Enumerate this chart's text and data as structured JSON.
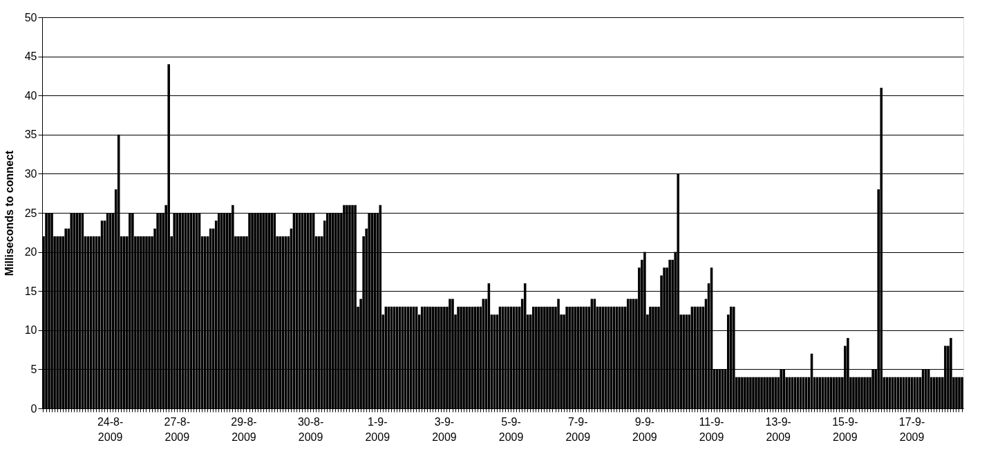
{
  "chart_data": {
    "type": "bar",
    "ylabel": "Milliseconds to connect",
    "categories": [
      null,
      null,
      null,
      null,
      null,
      null,
      null,
      null,
      null,
      null,
      null,
      null,
      null,
      null,
      null,
      null,
      null,
      null,
      null,
      null,
      null,
      null,
      null,
      null,
      "24-8-2009",
      null,
      null,
      null,
      null,
      null,
      null,
      null,
      null,
      null,
      null,
      null,
      null,
      null,
      null,
      null,
      null,
      null,
      null,
      null,
      null,
      null,
      null,
      null,
      "27-8-2009",
      null,
      null,
      null,
      null,
      null,
      null,
      null,
      null,
      null,
      null,
      null,
      null,
      null,
      null,
      null,
      null,
      null,
      null,
      null,
      null,
      null,
      null,
      null,
      "29-8-2009",
      null,
      null,
      null,
      null,
      null,
      null,
      null,
      null,
      null,
      null,
      null,
      null,
      null,
      null,
      null,
      null,
      null,
      null,
      null,
      null,
      null,
      null,
      null,
      "30-8-2009",
      null,
      null,
      null,
      null,
      null,
      null,
      null,
      null,
      null,
      null,
      null,
      null,
      null,
      null,
      null,
      null,
      null,
      null,
      null,
      null,
      null,
      null,
      null,
      "1-9-2009",
      null,
      null,
      null,
      null,
      null,
      null,
      null,
      null,
      null,
      null,
      null,
      null,
      null,
      null,
      null,
      null,
      null,
      null,
      null,
      null,
      null,
      null,
      null,
      "3-9-2009",
      null,
      null,
      null,
      null,
      null,
      null,
      null,
      null,
      null,
      null,
      null,
      null,
      null,
      null,
      null,
      null,
      null,
      null,
      null,
      null,
      null,
      null,
      null,
      "5-9-2009",
      null,
      null,
      null,
      null,
      null,
      null,
      null,
      null,
      null,
      null,
      null,
      null,
      null,
      null,
      null,
      null,
      null,
      null,
      null,
      null,
      null,
      null,
      null,
      "7-9-2009",
      null,
      null,
      null,
      null,
      null,
      null,
      null,
      null,
      null,
      null,
      null,
      null,
      null,
      null,
      null,
      null,
      null,
      null,
      null,
      null,
      null,
      null,
      null,
      "9-9-2009",
      null,
      null,
      null,
      null,
      null,
      null,
      null,
      null,
      null,
      null,
      null,
      null,
      null,
      null,
      null,
      null,
      null,
      null,
      null,
      null,
      null,
      null,
      null,
      "11-9-2009",
      null,
      null,
      null,
      null,
      null,
      null,
      null,
      null,
      null,
      null,
      null,
      null,
      null,
      null,
      null,
      null,
      null,
      null,
      null,
      null,
      null,
      null,
      null,
      "13-9-2009",
      null,
      null,
      null,
      null,
      null,
      null,
      null,
      null,
      null,
      null,
      null,
      null,
      null,
      null,
      null,
      null,
      null,
      null,
      null,
      null,
      null,
      null,
      null,
      "15-9-2009",
      null,
      null,
      null,
      null,
      null,
      null,
      null,
      null,
      null,
      null,
      null,
      null,
      null,
      null,
      null,
      null,
      null,
      null,
      null,
      null,
      null,
      null,
      null,
      "17-9-2009",
      null,
      null,
      null,
      null,
      null,
      null,
      null,
      null,
      null,
      null,
      null,
      null,
      null,
      null,
      null,
      null,
      null,
      null
    ],
    "values": [
      22,
      25,
      25,
      25,
      22,
      22,
      22,
      22,
      23,
      23,
      25,
      25,
      25,
      25,
      25,
      22,
      22,
      22,
      22,
      22,
      22,
      24,
      24,
      25,
      25,
      25,
      28,
      35,
      22,
      22,
      22,
      25,
      25,
      22,
      22,
      22,
      22,
      22,
      22,
      22,
      23,
      25,
      25,
      25,
      26,
      44,
      22,
      25,
      25,
      25,
      25,
      25,
      25,
      25,
      25,
      25,
      25,
      22,
      22,
      22,
      23,
      23,
      24,
      25,
      25,
      25,
      25,
      25,
      26,
      22,
      22,
      22,
      22,
      22,
      25,
      25,
      25,
      25,
      25,
      25,
      25,
      25,
      25,
      25,
      22,
      22,
      22,
      22,
      22,
      23,
      25,
      25,
      25,
      25,
      25,
      25,
      25,
      25,
      22,
      22,
      22,
      24,
      25,
      25,
      25,
      25,
      25,
      25,
      26,
      26,
      26,
      26,
      26,
      13,
      14,
      22,
      23,
      25,
      25,
      25,
      25,
      26,
      12,
      13,
      13,
      13,
      13,
      13,
      13,
      13,
      13,
      13,
      13,
      13,
      13,
      12,
      13,
      13,
      13,
      13,
      13,
      13,
      13,
      13,
      13,
      13,
      14,
      14,
      12,
      13,
      13,
      13,
      13,
      13,
      13,
      13,
      13,
      13,
      14,
      14,
      16,
      12,
      12,
      12,
      13,
      13,
      13,
      13,
      13,
      13,
      13,
      13,
      14,
      16,
      12,
      12,
      13,
      13,
      13,
      13,
      13,
      13,
      13,
      13,
      13,
      14,
      12,
      12,
      13,
      13,
      13,
      13,
      13,
      13,
      13,
      13,
      13,
      14,
      14,
      13,
      13,
      13,
      13,
      13,
      13,
      13,
      13,
      13,
      13,
      13,
      14,
      14,
      14,
      14,
      18,
      19,
      20,
      12,
      13,
      13,
      13,
      13,
      17,
      18,
      18,
      19,
      19,
      20,
      30,
      12,
      12,
      12,
      12,
      13,
      13,
      13,
      13,
      13,
      14,
      16,
      18,
      5,
      5,
      5,
      5,
      5,
      12,
      13,
      13,
      4,
      4,
      4,
      4,
      4,
      4,
      4,
      4,
      4,
      4,
      4,
      4,
      4,
      4,
      4,
      4,
      5,
      5,
      4,
      4,
      4,
      4,
      4,
      4,
      4,
      4,
      4,
      7,
      4,
      4,
      4,
      4,
      4,
      4,
      4,
      4,
      4,
      4,
      4,
      8,
      9,
      4,
      4,
      4,
      4,
      4,
      4,
      4,
      4,
      5,
      5,
      28,
      41,
      4,
      4,
      4,
      4,
      4,
      4,
      4,
      4,
      4,
      4,
      4,
      4,
      4,
      4,
      5,
      5,
      5,
      4,
      4,
      4,
      4,
      4,
      8,
      8,
      9,
      4,
      4,
      4,
      4
    ],
    "color": "#000000",
    "ylim": [
      0,
      50
    ],
    "yticks": [
      0,
      5,
      10,
      15,
      20,
      25,
      30,
      35,
      40,
      45,
      50
    ],
    "grid": "y"
  }
}
